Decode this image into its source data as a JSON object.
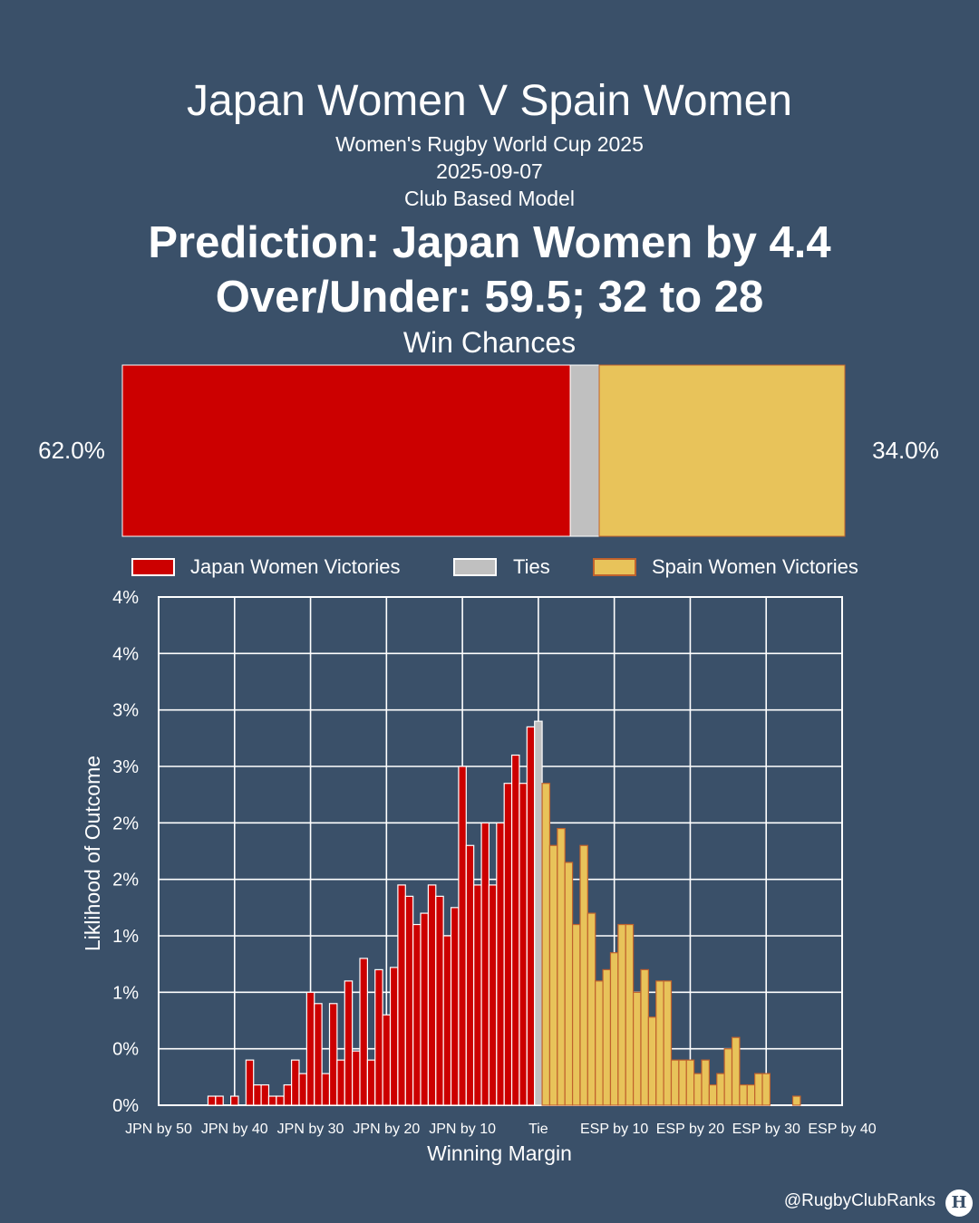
{
  "header": {
    "title": "Japan Women V Spain Women",
    "competition": "Women's Rugby World Cup 2025",
    "date": "2025-09-07",
    "model": "Club Based Model",
    "prediction": "Prediction: Japan Women by 4.4",
    "over_under": "Over/Under: 59.5; 32 to 28",
    "win_chances_title": "Win Chances"
  },
  "win_chances": {
    "home_pct_label": "62.0%",
    "away_pct_label": "34.0%",
    "home": 62.0,
    "tie": 4.0,
    "away": 34.0
  },
  "colors": {
    "home": "#cc0000",
    "tie": "#c0c0c0",
    "away": "#e8c35a",
    "home_edge": "#ffffff",
    "away_edge": "#c0622d",
    "background": "#3a5069"
  },
  "legend": {
    "home": "Japan Women Victories",
    "tie": "Ties",
    "away": "Spain Women Victories"
  },
  "chart_data": {
    "type": "bar",
    "xlabel": "Winning Margin",
    "ylabel": "Liklihood of Outcome",
    "y_tick_labels": [
      "0%",
      "0%",
      "1%",
      "1%",
      "2%",
      "2%",
      "3%",
      "3%",
      "4%",
      "4%"
    ],
    "ylim": [
      0,
      4.5
    ],
    "x_tick_labels": [
      "JPN by 50",
      "JPN by 40",
      "JPN by 30",
      "JPN by 20",
      "JPN by 10",
      "Tie",
      "ESP by 10",
      "ESP by 20",
      "ESP by 30",
      "ESP by 40"
    ],
    "xlim": [
      -50,
      40
    ],
    "grid": true,
    "margins": [
      -50,
      -49,
      -48,
      -47,
      -46,
      -45,
      -44,
      -43,
      -42,
      -41,
      -40,
      -39,
      -38,
      -37,
      -36,
      -35,
      -34,
      -33,
      -32,
      -31,
      -30,
      -29,
      -28,
      -27,
      -26,
      -25,
      -24,
      -23,
      -22,
      -21,
      -20,
      -19,
      -18,
      -17,
      -16,
      -15,
      -14,
      -13,
      -12,
      -11,
      -10,
      -9,
      -8,
      -7,
      -6,
      -5,
      -4,
      -3,
      -2,
      -1,
      0,
      1,
      2,
      3,
      4,
      5,
      6,
      7,
      8,
      9,
      10,
      11,
      12,
      13,
      14,
      15,
      16,
      17,
      18,
      19,
      20,
      21,
      22,
      23,
      24,
      25,
      26,
      27,
      28,
      29,
      30,
      31,
      32,
      33,
      34,
      35,
      36,
      37,
      38,
      39,
      40
    ],
    "values": [
      0,
      0,
      0,
      0,
      0,
      0,
      0,
      0.08,
      0.08,
      0,
      0.08,
      0,
      0.4,
      0.18,
      0.18,
      0.08,
      0.08,
      0.18,
      0.4,
      0.28,
      1.0,
      0.9,
      0.28,
      0.9,
      0.4,
      1.1,
      0.48,
      1.3,
      0.4,
      1.2,
      0.8,
      1.22,
      1.95,
      1.85,
      1.6,
      1.7,
      1.95,
      1.85,
      1.5,
      1.75,
      3.0,
      2.3,
      1.95,
      2.5,
      1.95,
      2.5,
      2.85,
      3.1,
      2.85,
      3.35,
      3.4,
      2.85,
      2.3,
      2.45,
      2.15,
      1.6,
      2.3,
      1.7,
      1.1,
      1.2,
      1.35,
      1.6,
      1.6,
      1.0,
      1.2,
      0.78,
      1.1,
      1.1,
      0.4,
      0.4,
      0.4,
      0.28,
      0.4,
      0.18,
      0.28,
      0.5,
      0.6,
      0.18,
      0.18,
      0.28,
      0.28,
      0,
      0,
      0,
      0.08,
      0,
      0,
      0,
      0,
      0,
      0
    ]
  },
  "footer": {
    "handle": "@RugbyClubRanks",
    "logo_glyph": "H"
  }
}
